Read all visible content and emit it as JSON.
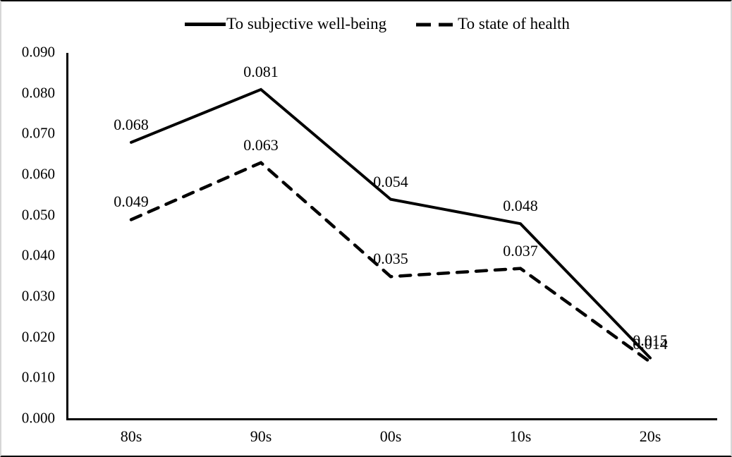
{
  "chart_data": {
    "type": "line",
    "categories": [
      "80s",
      "90s",
      "00s",
      "10s",
      "20s"
    ],
    "series": [
      {
        "name": "To subjective well-being",
        "line_style": "solid",
        "values": [
          0.068,
          0.081,
          0.054,
          0.048,
          0.015
        ],
        "point_labels": [
          "0.068",
          "0.081",
          "0.054",
          "0.048",
          "0.015"
        ]
      },
      {
        "name": "To state of health",
        "line_style": "dashed",
        "values": [
          0.049,
          0.063,
          0.035,
          0.037,
          0.014
        ],
        "point_labels": [
          "0.049",
          "0.063",
          "0.035",
          "0.037",
          "0.014"
        ]
      }
    ],
    "title": "",
    "xlabel": "",
    "ylabel": "",
    "ylim": [
      0.0,
      0.09
    ],
    "y_tick_labels": [
      "0.090",
      "0.080",
      "0.070",
      "0.060",
      "0.050",
      "0.040",
      "0.030",
      "0.020",
      "0.010",
      "0.000"
    ],
    "grid": false,
    "legend_position": "top",
    "line_color": "#000000",
    "background_color": "#ffffff"
  }
}
